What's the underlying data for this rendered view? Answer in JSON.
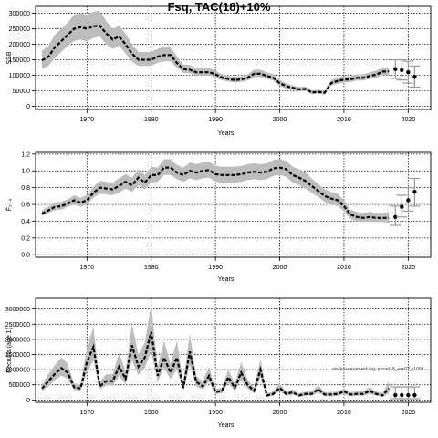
{
  "title": "Fsq, TAC(18)+10%",
  "watermark": "stockassessment.org, nscod18_ass02_r1008",
  "colors": {
    "band": "#bdbdbd",
    "line": "#000000",
    "grid": "#000000",
    "proj_err": "#9a9a9a"
  },
  "chart_data": [
    {
      "type": "line",
      "ylabel": "SSB",
      "xlabel": "Years",
      "xlim": [
        1962,
        2023.5
      ],
      "ylim": [
        -10000,
        322000
      ],
      "xticks": [
        1970,
        1980,
        1990,
        2000,
        2010,
        2020
      ],
      "yticks": [
        0,
        50000,
        100000,
        150000,
        200000,
        250000,
        300000
      ],
      "grid": true,
      "x": [
        1963,
        1964,
        1965,
        1966,
        1967,
        1968,
        1969,
        1970,
        1971,
        1972,
        1973,
        1974,
        1975,
        1976,
        1977,
        1978,
        1979,
        1980,
        1981,
        1982,
        1983,
        1984,
        1985,
        1986,
        1987,
        1988,
        1989,
        1990,
        1991,
        1992,
        1993,
        1994,
        1995,
        1996,
        1997,
        1998,
        1999,
        2000,
        2001,
        2002,
        2003,
        2004,
        2005,
        2006,
        2007,
        2008,
        2009,
        2010,
        2011,
        2012,
        2013,
        2014,
        2015,
        2016,
        2017
      ],
      "y": [
        148000,
        160000,
        190000,
        210000,
        230000,
        250000,
        255000,
        250000,
        258000,
        260000,
        235000,
        215000,
        225000,
        200000,
        170000,
        150000,
        150000,
        150000,
        160000,
        165000,
        165000,
        140000,
        120000,
        118000,
        110000,
        110000,
        110000,
        103000,
        93000,
        88000,
        85000,
        87000,
        92000,
        105000,
        105000,
        98000,
        92000,
        75000,
        65000,
        60000,
        55000,
        56000,
        45000,
        47000,
        44000,
        75000,
        82000,
        86000,
        87000,
        92000,
        92000,
        98000,
        102000,
        112000,
        113000
      ],
      "lower": [
        120000,
        130000,
        155000,
        175000,
        195000,
        210000,
        215000,
        210000,
        220000,
        225000,
        200000,
        185000,
        195000,
        170000,
        145000,
        130000,
        130000,
        130000,
        140000,
        145000,
        145000,
        125000,
        108000,
        106000,
        99000,
        99000,
        99000,
        93000,
        84000,
        80000,
        77000,
        79000,
        83000,
        94000,
        95000,
        88000,
        83000,
        66000,
        57000,
        53000,
        48000,
        49000,
        39000,
        41000,
        38000,
        67000,
        73000,
        77000,
        78000,
        83000,
        83000,
        88000,
        92000,
        101000,
        102000
      ],
      "upper": [
        178000,
        195000,
        230000,
        250000,
        270000,
        295000,
        300000,
        295000,
        305000,
        308000,
        275000,
        250000,
        260000,
        235000,
        200000,
        175000,
        175000,
        175000,
        185000,
        190000,
        190000,
        160000,
        135000,
        133000,
        124000,
        124000,
        124000,
        115000,
        104000,
        98000,
        95000,
        97000,
        103000,
        118000,
        118000,
        110000,
        103000,
        85000,
        74000,
        68000,
        63000,
        64000,
        52000,
        54000,
        51000,
        85000,
        93000,
        97000,
        98000,
        103000,
        103000,
        110000,
        115000,
        125000,
        126000
      ],
      "proj_x": [
        2018,
        2019,
        2020,
        2021
      ],
      "proj_y": [
        120000,
        117000,
        110000,
        95000
      ],
      "proj_lo": [
        90000,
        85000,
        75000,
        62000
      ],
      "proj_hi": [
        150000,
        150000,
        145000,
        130000
      ]
    },
    {
      "type": "line",
      "ylabel": "F̄₂₋₄",
      "xlabel": "Years",
      "xlim": [
        1962,
        2023.5
      ],
      "ylim": [
        -0.03,
        1.22
      ],
      "xticks": [
        1970,
        1980,
        1990,
        2000,
        2010,
        2020
      ],
      "yticks": [
        0.0,
        0.2,
        0.4,
        0.6,
        0.8,
        1.0,
        1.2
      ],
      "ytick_labels": [
        "0.0",
        "0.2",
        "0.4",
        "0.6",
        "0.8",
        "1.0",
        "1.2"
      ],
      "grid": true,
      "x": [
        1963,
        1964,
        1965,
        1966,
        1967,
        1968,
        1969,
        1970,
        1971,
        1972,
        1973,
        1974,
        1975,
        1976,
        1977,
        1978,
        1979,
        1980,
        1981,
        1982,
        1983,
        1984,
        1985,
        1986,
        1987,
        1988,
        1989,
        1990,
        1991,
        1992,
        1993,
        1994,
        1995,
        1996,
        1997,
        1998,
        1999,
        2000,
        2001,
        2002,
        2003,
        2004,
        2005,
        2006,
        2007,
        2008,
        2009,
        2010,
        2011,
        2012,
        2013,
        2014,
        2015,
        2016,
        2017
      ],
      "y": [
        0.49,
        0.53,
        0.57,
        0.58,
        0.61,
        0.65,
        0.62,
        0.65,
        0.74,
        0.8,
        0.79,
        0.78,
        0.82,
        0.87,
        0.83,
        0.92,
        0.86,
        0.95,
        0.95,
        1.04,
        1.04,
        0.98,
        0.95,
        1.0,
        0.98,
        1.0,
        1.01,
        0.96,
        0.95,
        0.95,
        0.95,
        0.96,
        0.98,
        0.99,
        0.98,
        0.99,
        1.03,
        1.04,
        1.02,
        0.95,
        0.92,
        0.88,
        0.82,
        0.76,
        0.7,
        0.67,
        0.65,
        0.58,
        0.48,
        0.45,
        0.44,
        0.45,
        0.44,
        0.44,
        0.44
      ],
      "lower": [
        0.46,
        0.5,
        0.53,
        0.54,
        0.57,
        0.6,
        0.57,
        0.6,
        0.68,
        0.73,
        0.72,
        0.71,
        0.74,
        0.79,
        0.75,
        0.83,
        0.78,
        0.86,
        0.87,
        0.95,
        0.95,
        0.9,
        0.87,
        0.91,
        0.89,
        0.91,
        0.92,
        0.87,
        0.86,
        0.86,
        0.86,
        0.87,
        0.89,
        0.9,
        0.89,
        0.9,
        0.94,
        0.95,
        0.93,
        0.86,
        0.83,
        0.79,
        0.74,
        0.69,
        0.63,
        0.6,
        0.58,
        0.52,
        0.43,
        0.4,
        0.39,
        0.4,
        0.39,
        0.39,
        0.38
      ],
      "upper": [
        0.53,
        0.57,
        0.62,
        0.63,
        0.66,
        0.71,
        0.68,
        0.71,
        0.81,
        0.88,
        0.87,
        0.86,
        0.91,
        0.96,
        0.92,
        1.02,
        0.95,
        1.05,
        1.04,
        1.14,
        1.14,
        1.07,
        1.04,
        1.1,
        1.08,
        1.1,
        1.11,
        1.06,
        1.05,
        1.05,
        1.05,
        1.06,
        1.08,
        1.09,
        1.08,
        1.09,
        1.13,
        1.14,
        1.12,
        1.05,
        1.02,
        0.98,
        0.91,
        0.84,
        0.78,
        0.75,
        0.73,
        0.65,
        0.54,
        0.51,
        0.5,
        0.51,
        0.5,
        0.5,
        0.51
      ],
      "proj_x": [
        2018,
        2019,
        2020,
        2021
      ],
      "proj_y": [
        0.45,
        0.57,
        0.65,
        0.75
      ],
      "proj_lo": [
        0.35,
        0.45,
        0.52,
        0.58
      ],
      "proj_hi": [
        0.58,
        0.71,
        0.8,
        0.91
      ]
    },
    {
      "type": "line",
      "ylabel": "Recruits (age 1)",
      "xlabel": "Years",
      "xlim": [
        1962,
        2023.5
      ],
      "ylim": [
        -80000,
        3350000
      ],
      "xticks": [
        1970,
        1980,
        1990,
        2000,
        2010,
        2020
      ],
      "yticks": [
        0,
        500000,
        1000000,
        1500000,
        2000000,
        2500000,
        3000000
      ],
      "grid": true,
      "x": [
        1963,
        1964,
        1965,
        1966,
        1967,
        1968,
        1969,
        1970,
        1971,
        1972,
        1973,
        1974,
        1975,
        1976,
        1977,
        1978,
        1979,
        1980,
        1981,
        1982,
        1983,
        1984,
        1985,
        1986,
        1987,
        1988,
        1989,
        1990,
        1991,
        1992,
        1993,
        1994,
        1995,
        1996,
        1997,
        1998,
        1999,
        2000,
        2001,
        2002,
        2003,
        2004,
        2005,
        2006,
        2007,
        2008,
        2009,
        2010,
        2011,
        2012,
        2013,
        2014,
        2015,
        2016,
        2017
      ],
      "y": [
        380000,
        620000,
        860000,
        1050000,
        900000,
        420000,
        380000,
        1250000,
        1750000,
        450000,
        620000,
        620000,
        1100000,
        700000,
        1800000,
        1100000,
        1400000,
        2250000,
        800000,
        1400000,
        900000,
        1400000,
        400000,
        1600000,
        600000,
        450000,
        800000,
        260000,
        300000,
        750000,
        400000,
        900000,
        500000,
        300000,
        1000000,
        150000,
        200000,
        400000,
        200000,
        250000,
        150000,
        200000,
        200000,
        350000,
        180000,
        180000,
        200000,
        280000,
        180000,
        200000,
        200000,
        300000,
        200000,
        150000,
        380000
      ],
      "lower": [
        280000,
        450000,
        650000,
        800000,
        700000,
        330000,
        300000,
        900000,
        1300000,
        350000,
        480000,
        480000,
        800000,
        520000,
        1300000,
        820000,
        1050000,
        1600000,
        600000,
        1050000,
        680000,
        1000000,
        300000,
        1150000,
        450000,
        340000,
        600000,
        190000,
        220000,
        560000,
        300000,
        660000,
        370000,
        220000,
        740000,
        100000,
        140000,
        300000,
        140000,
        180000,
        100000,
        140000,
        140000,
        250000,
        120000,
        120000,
        140000,
        200000,
        120000,
        140000,
        140000,
        210000,
        140000,
        100000,
        220000
      ],
      "upper": [
        500000,
        850000,
        1150000,
        1400000,
        1200000,
        550000,
        500000,
        1750000,
        2400000,
        600000,
        850000,
        850000,
        1550000,
        950000,
        2500000,
        1500000,
        1900000,
        3150000,
        1100000,
        1950000,
        1200000,
        1950000,
        550000,
        2200000,
        800000,
        600000,
        1100000,
        350000,
        400000,
        1000000,
        550000,
        1250000,
        680000,
        400000,
        1350000,
        220000,
        280000,
        550000,
        280000,
        350000,
        220000,
        280000,
        280000,
        480000,
        260000,
        260000,
        280000,
        380000,
        260000,
        280000,
        280000,
        420000,
        280000,
        220000,
        600000
      ],
      "proj_x": [
        2018,
        2019,
        2020,
        2021
      ],
      "proj_y": [
        160000,
        160000,
        160000,
        160000
      ],
      "proj_lo": [
        40000,
        40000,
        40000,
        40000
      ],
      "proj_hi": [
        430000,
        430000,
        430000,
        430000
      ]
    }
  ]
}
